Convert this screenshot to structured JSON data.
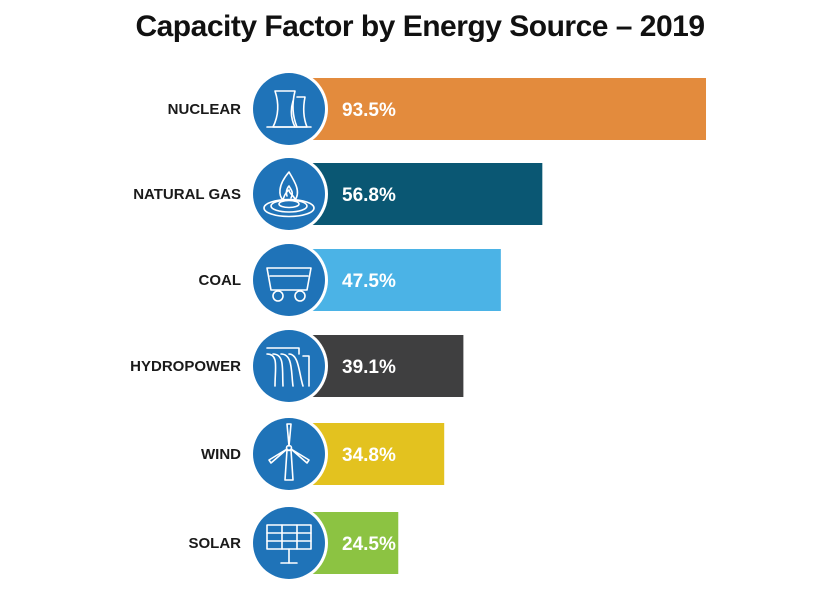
{
  "chart_data": {
    "type": "bar",
    "orientation": "horizontal",
    "title": "Capacity Factor by Energy Source – 2019",
    "categories": [
      "NUCLEAR",
      "NATURAL GAS",
      "COAL",
      "HYDROPOWER",
      "WIND",
      "SOLAR"
    ],
    "values": [
      93.5,
      56.8,
      47.5,
      39.1,
      34.8,
      24.5
    ],
    "value_labels": [
      "93.5%",
      "56.8%",
      "47.5%",
      "39.1%",
      "34.8%",
      "24.5%"
    ],
    "unit": "%",
    "xlim": [
      0,
      100
    ],
    "grid": false,
    "legend": "none",
    "bar_colors": [
      "#E38B3D",
      "#0A5773",
      "#4BB3E6",
      "#3F3F40",
      "#E3C21F",
      "#8CC342"
    ],
    "icon_circle_color": "#1F73B8",
    "icons": [
      "cooling-tower-icon",
      "gas-flame-icon",
      "coal-cart-icon",
      "dam-waterfall-icon",
      "wind-turbine-icon",
      "solar-panel-icon"
    ]
  }
}
